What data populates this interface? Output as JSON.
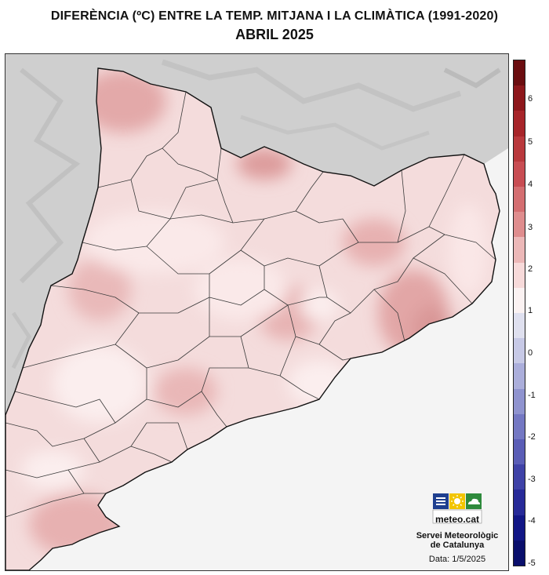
{
  "title": {
    "line1": "DIFERÈNCIA (ºC) ENTRE LA TEMP. MITJANA I LA CLIMÀTICA (1991-2020)",
    "line2": "ABRIL 2025"
  },
  "legend": {
    "labels": [
      "6",
      "5",
      "4",
      "3",
      "2",
      "1",
      "0",
      "-1",
      "-2",
      "-3",
      "-4",
      "-5"
    ],
    "colors": [
      "#6b0d10",
      "#8d171b",
      "#a7252a",
      "#b9393d",
      "#c84d53",
      "#d46e71",
      "#df8d8e",
      "#ecb8b8",
      "#f7dada",
      "#fbf2f2",
      "#dfe0ef",
      "#c7c9e6",
      "#abaedb",
      "#8f93cf",
      "#7478c3",
      "#5a5db6",
      "#3f42a7",
      "#272a98",
      "#121786",
      "#0a0f6c"
    ]
  },
  "map": {
    "sea_color": "#f4f4f4",
    "terrain_color": "#cfcfcf",
    "land_base_color": "#f4dcdc"
  },
  "branding": {
    "logo_text": "meteo.cat",
    "org_line1": "Servei Meteorològic",
    "org_line2": "de Catalunya",
    "date": "Data: 1/5/2025"
  }
}
